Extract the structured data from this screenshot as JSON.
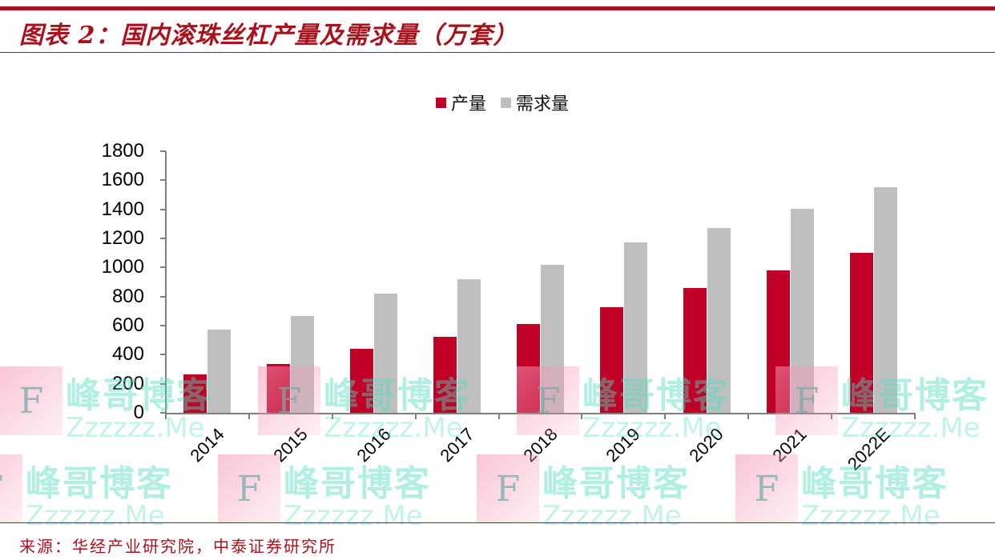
{
  "header": {
    "title": "图表 2：国内滚珠丝杠产量及需求量（万套）"
  },
  "footer": {
    "source": "来源：华经产业研究院，中泰证券研究所"
  },
  "colors": {
    "accent": "#a8121c",
    "production": "#c00027",
    "demand": "#bfbfbf"
  },
  "legend": {
    "items": [
      {
        "label": "产量",
        "color": "#c00027"
      },
      {
        "label": "需求量",
        "color": "#bfbfbf"
      }
    ]
  },
  "axis": {
    "y_ticks": [
      "1800",
      "1600",
      "1400",
      "1200",
      "1000",
      "800",
      "600",
      "400",
      "200",
      "0"
    ],
    "x_ticks": [
      "2014",
      "2015",
      "2016",
      "2017",
      "2018",
      "2019",
      "2020",
      "2021",
      "2022E"
    ]
  },
  "watermark": {
    "cn": "峰哥博客",
    "en": "Zzzzzz.Me",
    "f": "F"
  },
  "chart_data": {
    "type": "bar",
    "title": "图表 2：国内滚珠丝杠产量及需求量（万套）",
    "categories": [
      "2014",
      "2015",
      "2016",
      "2017",
      "2018",
      "2019",
      "2020",
      "2021",
      "2022E"
    ],
    "series": [
      {
        "name": "产量",
        "color": "#c00027",
        "values": [
          265,
          335,
          440,
          523,
          611,
          727,
          859,
          980,
          1101
        ]
      },
      {
        "name": "需求量",
        "color": "#bfbfbf",
        "values": [
          575,
          665,
          820,
          920,
          1019,
          1173,
          1272,
          1404,
          1553
        ]
      }
    ],
    "xlabel": "",
    "ylabel": "",
    "ylim": [
      0,
      1800
    ],
    "yticks": [
      0,
      200,
      400,
      600,
      800,
      1000,
      1200,
      1400,
      1600,
      1800
    ],
    "grid": false,
    "legend_position": "top",
    "unit": "万套",
    "source": "来源：华经产业研究院，中泰证券研究所"
  }
}
